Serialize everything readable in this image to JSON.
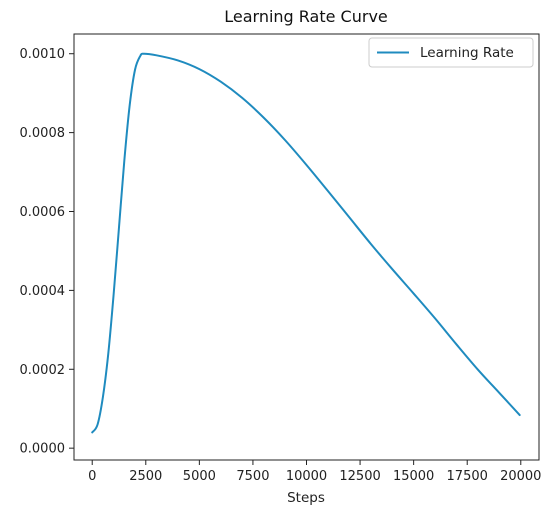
{
  "chart_data": {
    "type": "line",
    "title": "Learning Rate Curve",
    "xlabel": "Steps",
    "ylabel": "",
    "xlim": [
      -850,
      20850
    ],
    "ylim": [
      -3e-05,
      0.00105
    ],
    "x_ticks": [
      0,
      2500,
      5000,
      7500,
      10000,
      12500,
      15000,
      17500,
      20000
    ],
    "x_tick_labels": [
      "0",
      "2500",
      "5000",
      "7500",
      "10000",
      "12500",
      "15000",
      "17500",
      "20000"
    ],
    "y_ticks": [
      0,
      0.0002,
      0.0004,
      0.0006,
      0.0008,
      0.001
    ],
    "y_tick_labels": [
      "0.0000",
      "0.0002",
      "0.0004",
      "0.0006",
      "0.0008",
      "0.0010"
    ],
    "grid": false,
    "legend_position": "top-right",
    "series": [
      {
        "name": "Learning Rate",
        "color": "#1f8bbf",
        "x": [
          0,
          250,
          500,
          750,
          1000,
          1250,
          1500,
          1750,
          2000,
          2250,
          2400,
          3000,
          4000,
          5000,
          6000,
          7000,
          8000,
          9000,
          10000,
          11000,
          12000,
          13000,
          14000,
          15000,
          16000,
          17000,
          18000,
          19000,
          19950
        ],
        "y": [
          4e-05,
          6e-05,
          0.00013,
          0.00024,
          0.00039,
          0.00056,
          0.00073,
          0.00087,
          0.00096,
          0.000995,
          0.001,
          0.000996,
          0.000983,
          0.000961,
          0.000929,
          0.000888,
          0.000838,
          0.000781,
          0.000718,
          0.000652,
          0.000585,
          0.000518,
          0.000454,
          0.000392,
          0.000329,
          0.000263,
          0.000199,
          0.00014,
          8.4e-05
        ]
      }
    ]
  }
}
